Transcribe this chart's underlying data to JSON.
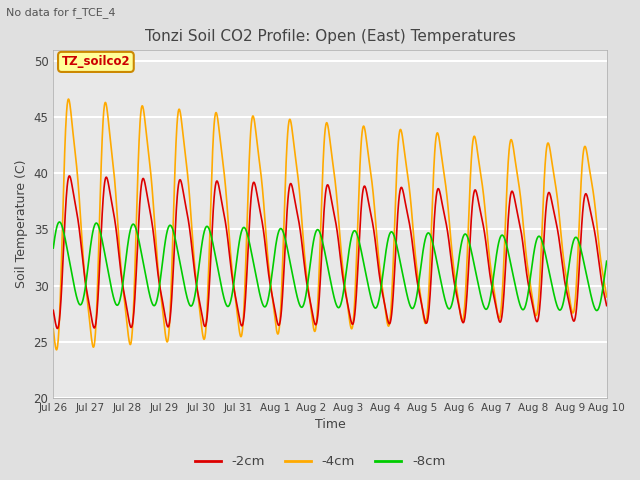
{
  "title": "Tonzi Soil CO2 Profile: Open (East) Temperatures",
  "no_data_text": "No data for f_TCE_4",
  "legend_label": "TZ_soilco2",
  "xlabel": "Time",
  "ylabel": "Soil Temperature (C)",
  "ylim": [
    20,
    51
  ],
  "yticks": [
    20,
    25,
    30,
    35,
    40,
    45,
    50
  ],
  "series_labels": [
    "-2cm",
    "-4cm",
    "-8cm"
  ],
  "series_colors": [
    "#dd0000",
    "#ffaa00",
    "#00cc00"
  ],
  "series_linewidths": [
    1.2,
    1.2,
    1.2
  ],
  "bg_color": "#e0e0e0",
  "plot_bg_color": "#e8e8e8",
  "grid_color": "white",
  "tick_labels": [
    "Jul 26",
    "Jul 27",
    "Jul 28",
    "Jul 29",
    "Jul 30",
    "Jul 31",
    "Aug 1",
    "Aug 2",
    "Aug 3",
    "Aug 4",
    "Aug 5",
    "Aug 6",
    "Aug 7",
    "Aug 8",
    "Aug 9",
    "Aug 10"
  ],
  "legend_box_color": "#ffff99",
  "legend_box_edge": "#cc8800"
}
